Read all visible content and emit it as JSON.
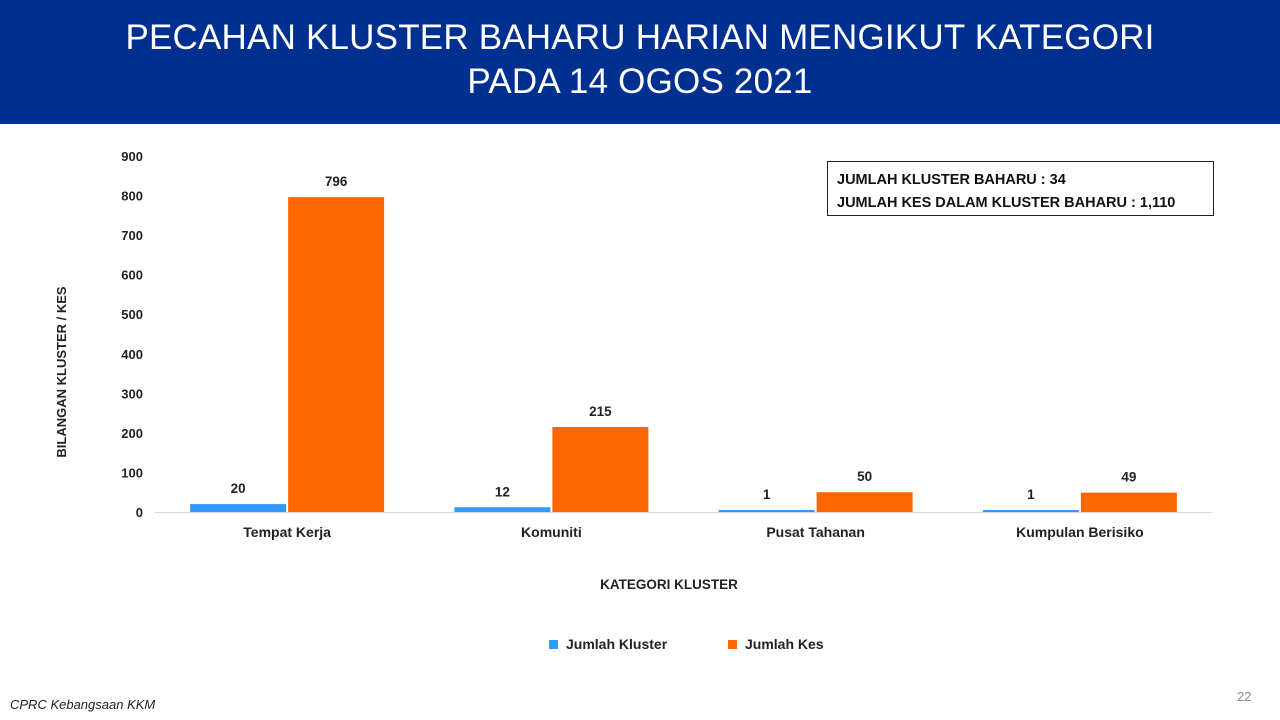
{
  "header": {
    "title_line1": "PECAHAN KLUSTER BAHARU HARIAN MENGIKUT KATEGORI",
    "title_line2": "PADA 14 OGOS 2021"
  },
  "summary": {
    "line1": "JUMLAH KLUSTER BAHARU : 34",
    "line2": "JUMLAH KES DALAM KLUSTER BAHARU : 1,110"
  },
  "chart_data": {
    "type": "bar",
    "categories": [
      "Tempat Kerja",
      "Komuniti",
      "Pusat Tahanan",
      "Kumpulan Berisiko"
    ],
    "series": [
      {
        "name": "Jumlah Kluster",
        "color": "#3399ff",
        "values": [
          20,
          12,
          1,
          1
        ]
      },
      {
        "name": "Jumlah Kes",
        "color": "#ff6600",
        "values": [
          796,
          215,
          50,
          49
        ]
      }
    ],
    "xlabel": "KATEGORI KLUSTER",
    "ylabel": "BILANGAN KLUSTER / KES",
    "ylim": [
      0,
      900
    ],
    "yticks": [
      0,
      100,
      200,
      300,
      400,
      500,
      600,
      700,
      800,
      900
    ],
    "grid": false,
    "legend_position": "bottom"
  },
  "footer": {
    "source": "CPRC Kebangsaan KKM",
    "page_number": "22"
  }
}
